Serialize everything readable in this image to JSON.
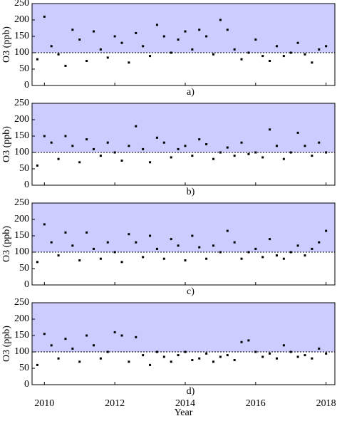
{
  "chart_data": [
    {
      "type": "scatter",
      "caption": "a)",
      "ylabel": "O3 (ppb)",
      "color": "#000000",
      "background": "#ccccff",
      "reference_line": 100,
      "xlim": [
        2009.65,
        2018.25
      ],
      "xticks": [
        2010,
        2012,
        2014,
        2016,
        2018
      ],
      "ylim": [
        0,
        250
      ],
      "yticks": [
        0,
        50,
        100,
        150,
        200,
        250
      ],
      "x": [
        2009.8,
        2010,
        2010.2,
        2010.4,
        2010.6,
        2010.8,
        2011,
        2011.2,
        2011.4,
        2011.6,
        2011.8,
        2012,
        2012.2,
        2012.4,
        2012.6,
        2012.8,
        2013,
        2013.2,
        2013.4,
        2013.6,
        2013.8,
        2014,
        2014.2,
        2014.4,
        2014.6,
        2014.8,
        2015,
        2015.2,
        2015.4,
        2015.6,
        2015.8,
        2016,
        2016.2,
        2016.4,
        2016.6,
        2016.8,
        2017,
        2017.2,
        2017.4,
        2017.6,
        2017.8,
        2018
      ],
      "values": [
        80,
        210,
        120,
        95,
        60,
        170,
        140,
        75,
        165,
        110,
        85,
        150,
        130,
        70,
        160,
        120,
        90,
        185,
        150,
        100,
        140,
        165,
        110,
        170,
        150,
        95,
        200,
        170,
        110,
        80,
        100,
        140,
        90,
        75,
        120,
        90,
        100,
        130,
        95,
        70,
        110,
        120
      ]
    },
    {
      "type": "scatter",
      "caption": "b)",
      "ylabel": "O3 (ppb)",
      "color": "#000000",
      "background": "#ccccff",
      "reference_line": 100,
      "xlim": [
        2009.65,
        2018.25
      ],
      "xticks": [
        2010,
        2012,
        2014,
        2016,
        2018
      ],
      "ylim": [
        0,
        250
      ],
      "yticks": [
        0,
        50,
        100,
        150,
        200,
        250
      ],
      "x": [
        2009.8,
        2010,
        2010.2,
        2010.4,
        2010.6,
        2010.8,
        2011,
        2011.2,
        2011.4,
        2011.6,
        2011.8,
        2012,
        2012.2,
        2012.4,
        2012.6,
        2012.8,
        2013,
        2013.2,
        2013.4,
        2013.6,
        2013.8,
        2014,
        2014.2,
        2014.4,
        2014.6,
        2014.8,
        2015,
        2015.2,
        2015.4,
        2015.6,
        2015.8,
        2016,
        2016.2,
        2016.4,
        2016.6,
        2016.8,
        2017,
        2017.2,
        2017.4,
        2017.6,
        2017.8,
        2018
      ],
      "values": [
        60,
        150,
        130,
        80,
        150,
        120,
        70,
        140,
        110,
        90,
        130,
        100,
        75,
        120,
        180,
        110,
        70,
        145,
        130,
        85,
        110,
        120,
        90,
        140,
        125,
        80,
        100,
        115,
        90,
        130,
        95,
        100,
        85,
        170,
        120,
        80,
        100,
        160,
        120,
        90,
        130,
        100
      ]
    },
    {
      "type": "scatter",
      "caption": "c)",
      "ylabel": "O3 (ppb)",
      "color": "#000000",
      "background": "#ccccff",
      "reference_line": 100,
      "xlim": [
        2009.65,
        2018.25
      ],
      "xticks": [
        2010,
        2012,
        2014,
        2016,
        2018
      ],
      "ylim": [
        0,
        250
      ],
      "yticks": [
        0,
        50,
        100,
        150,
        200,
        250
      ],
      "x": [
        2009.8,
        2010,
        2010.2,
        2010.4,
        2010.6,
        2010.8,
        2011,
        2011.2,
        2011.4,
        2011.6,
        2011.8,
        2012,
        2012.2,
        2012.4,
        2012.6,
        2012.8,
        2013,
        2013.2,
        2013.4,
        2013.6,
        2013.8,
        2014,
        2014.2,
        2014.4,
        2014.6,
        2014.8,
        2015,
        2015.2,
        2015.4,
        2015.6,
        2015.8,
        2016,
        2016.2,
        2016.4,
        2016.6,
        2016.8,
        2017,
        2017.2,
        2017.4,
        2017.6,
        2017.8,
        2018
      ],
      "values": [
        70,
        185,
        130,
        90,
        160,
        120,
        75,
        160,
        110,
        80,
        130,
        100,
        70,
        155,
        130,
        85,
        150,
        110,
        80,
        140,
        120,
        75,
        150,
        115,
        80,
        120,
        100,
        165,
        130,
        80,
        100,
        110,
        85,
        140,
        90,
        80,
        100,
        120,
        90,
        110,
        130,
        165
      ]
    },
    {
      "type": "scatter",
      "caption": "d)",
      "ylabel": "O3 (ppb)",
      "xlabel": "Year",
      "color": "#000000",
      "background": "#ccccff",
      "reference_line": 100,
      "xlim": [
        2009.65,
        2018.25
      ],
      "xticks": [
        2010,
        2012,
        2014,
        2016,
        2018
      ],
      "ylim": [
        0,
        250
      ],
      "yticks": [
        0,
        50,
        100,
        150,
        200,
        250
      ],
      "x": [
        2009.8,
        2010,
        2010.2,
        2010.4,
        2010.6,
        2010.8,
        2011,
        2011.2,
        2011.4,
        2011.6,
        2011.8,
        2012,
        2012.2,
        2012.4,
        2012.6,
        2012.8,
        2013,
        2013.2,
        2013.4,
        2013.6,
        2013.8,
        2014,
        2014.2,
        2014.4,
        2014.6,
        2014.8,
        2015,
        2015.2,
        2015.4,
        2015.6,
        2015.8,
        2016,
        2016.2,
        2016.4,
        2016.6,
        2016.8,
        2017,
        2017.2,
        2017.4,
        2017.6,
        2017.8,
        2018
      ],
      "values": [
        60,
        155,
        120,
        80,
        140,
        110,
        70,
        150,
        120,
        80,
        100,
        160,
        150,
        70,
        145,
        90,
        60,
        100,
        85,
        70,
        90,
        100,
        75,
        80,
        95,
        70,
        85,
        90,
        75,
        130,
        135,
        100,
        85,
        95,
        80,
        120,
        100,
        85,
        90,
        80,
        110,
        95
      ]
    }
  ]
}
